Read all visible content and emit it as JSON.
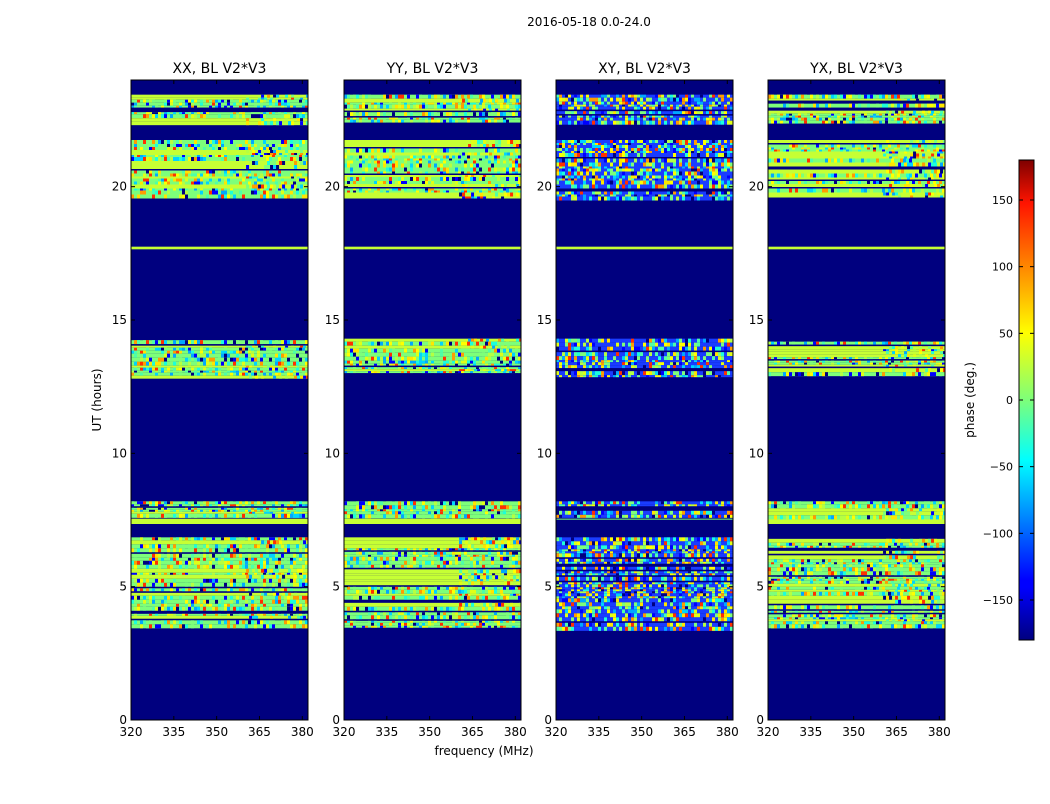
{
  "chart_data": {
    "type": "heatmap",
    "title": "2016-05-18 0.0-24.0",
    "xlabel": "frequency (MHz)",
    "ylabel": "UT (hours)",
    "xlim": [
      320,
      382
    ],
    "ylim": [
      0,
      24
    ],
    "x_ticks": [
      "320",
      "335",
      "350",
      "365",
      "380"
    ],
    "x_tick_values": [
      320,
      335,
      350,
      365,
      380
    ],
    "y_ticks": [
      "0",
      "5",
      "10",
      "15",
      "20"
    ],
    "y_tick_values": [
      0,
      5,
      10,
      15,
      20
    ],
    "colorbar": {
      "label": "phase (deg.)",
      "range": [
        -180,
        180
      ],
      "ticks": [
        "−150",
        "−100",
        "−50",
        "0",
        "50",
        "100",
        "150"
      ],
      "tick_values": [
        -150,
        -100,
        -50,
        0,
        50,
        100,
        150
      ],
      "colormap": "jet"
    },
    "panels": [
      {
        "title": "XX, BL V2*V3"
      },
      {
        "title": "YY, BL V2*V3"
      },
      {
        "title": "XY, BL V2*V3"
      },
      {
        "title": "YX, BL V2*V3"
      }
    ],
    "data_blocks_ut_hours": [
      {
        "start": 3.45,
        "end": 6.85,
        "pattern": "noisy"
      },
      {
        "start": 7.35,
        "end": 7.55,
        "pattern": "solid"
      },
      {
        "start": 7.6,
        "end": 8.2,
        "pattern": "noisy"
      },
      {
        "start": 12.9,
        "end": 14.3,
        "pattern": "noisy"
      },
      {
        "start": 17.65,
        "end": 17.75,
        "pattern": "solid"
      },
      {
        "start": 19.6,
        "end": 21.75,
        "pattern": "noisy"
      },
      {
        "start": 22.35,
        "end": 23.45,
        "pattern": "noisy"
      }
    ],
    "background_value_deg": -180
  }
}
